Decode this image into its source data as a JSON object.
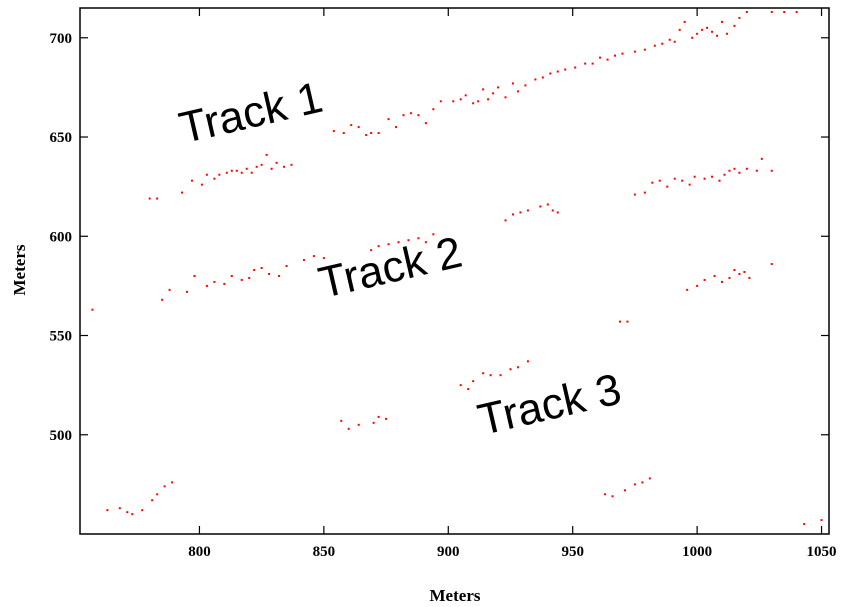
{
  "chart_data": {
    "type": "scatter",
    "title": "",
    "xlabel": "Meters",
    "ylabel": "Meters",
    "xlim": [
      752,
      1053
    ],
    "ylim": [
      450,
      715
    ],
    "x_ticks": [
      800,
      850,
      900,
      950,
      1000,
      1050
    ],
    "y_ticks": [
      500,
      550,
      600,
      650,
      700
    ],
    "grid": false,
    "point_color": "#ff0000",
    "annotations": [
      {
        "text": "Track 1",
        "x": 822,
        "y": 655,
        "rotation": -13
      },
      {
        "text": "Track 2",
        "x": 878,
        "y": 577,
        "rotation": -13
      },
      {
        "text": "Track 3",
        "x": 942,
        "y": 508,
        "rotation": -13
      }
    ],
    "series": [
      {
        "points": [
          [
            780,
            619
          ],
          [
            783,
            619
          ],
          [
            793,
            622
          ],
          [
            797,
            628
          ],
          [
            801,
            626
          ],
          [
            803,
            631
          ],
          [
            806,
            629
          ],
          [
            808,
            631
          ],
          [
            811,
            632
          ],
          [
            813,
            633
          ],
          [
            815,
            633
          ],
          [
            817,
            632
          ],
          [
            819,
            634
          ],
          [
            821,
            632
          ],
          [
            823,
            635
          ],
          [
            825,
            636
          ],
          [
            827,
            641
          ],
          [
            829,
            634
          ],
          [
            831,
            637
          ],
          [
            834,
            635
          ],
          [
            837,
            636
          ],
          [
            854,
            653
          ],
          [
            858,
            652
          ],
          [
            861,
            656
          ],
          [
            864,
            655
          ],
          [
            867,
            651
          ],
          [
            869,
            652
          ],
          [
            872,
            652
          ],
          [
            876,
            659
          ],
          [
            879,
            655
          ],
          [
            882,
            661
          ],
          [
            885,
            662
          ],
          [
            888,
            661
          ],
          [
            891,
            657
          ],
          [
            894,
            664
          ],
          [
            897,
            668
          ],
          [
            902,
            668
          ],
          [
            905,
            669
          ],
          [
            907,
            671
          ],
          [
            910,
            667
          ],
          [
            912,
            668
          ],
          [
            914,
            674
          ],
          [
            916,
            669
          ],
          [
            918,
            672
          ],
          [
            920,
            675
          ],
          [
            923,
            670
          ],
          [
            926,
            677
          ],
          [
            928,
            673
          ],
          [
            931,
            676
          ],
          [
            935,
            679
          ],
          [
            938,
            680
          ],
          [
            941,
            682
          ],
          [
            944,
            683
          ],
          [
            947,
            684
          ],
          [
            951,
            685
          ],
          [
            955,
            687
          ],
          [
            958,
            687
          ],
          [
            961,
            690
          ],
          [
            964,
            689
          ],
          [
            967,
            691
          ],
          [
            970,
            692
          ],
          [
            975,
            693
          ],
          [
            979,
            694
          ],
          [
            983,
            696
          ],
          [
            986,
            697
          ],
          [
            989,
            699
          ],
          [
            991,
            698
          ],
          [
            993,
            704
          ],
          [
            995,
            708
          ],
          [
            998,
            700
          ],
          [
            1000,
            702
          ],
          [
            1002,
            704
          ],
          [
            1004,
            705
          ],
          [
            1006,
            703
          ],
          [
            1008,
            701
          ],
          [
            1010,
            708
          ],
          [
            1012,
            702
          ],
          [
            1015,
            706
          ],
          [
            1017,
            710
          ],
          [
            1020,
            713
          ],
          [
            1030,
            713
          ],
          [
            1035,
            713
          ],
          [
            1040,
            713
          ],
          [
            757,
            563
          ],
          [
            785,
            568
          ],
          [
            788,
            573
          ],
          [
            795,
            572
          ],
          [
            798,
            580
          ],
          [
            803,
            575
          ],
          [
            806,
            577
          ],
          [
            810,
            576
          ],
          [
            813,
            580
          ],
          [
            817,
            578
          ],
          [
            820,
            579
          ],
          [
            822,
            583
          ],
          [
            825,
            584
          ],
          [
            828,
            581
          ],
          [
            832,
            580
          ],
          [
            835,
            585
          ],
          [
            842,
            588
          ],
          [
            846,
            590
          ],
          [
            850,
            589
          ],
          [
            869,
            593
          ],
          [
            872,
            595
          ],
          [
            876,
            596
          ],
          [
            880,
            597
          ],
          [
            884,
            598
          ],
          [
            888,
            599
          ],
          [
            891,
            597
          ],
          [
            894,
            601
          ],
          [
            923,
            608
          ],
          [
            926,
            611
          ],
          [
            929,
            612
          ],
          [
            932,
            613
          ],
          [
            937,
            615
          ],
          [
            940,
            616
          ],
          [
            942,
            613
          ],
          [
            944,
            612
          ],
          [
            975,
            621
          ],
          [
            979,
            622
          ],
          [
            982,
            627
          ],
          [
            985,
            628
          ],
          [
            988,
            625
          ],
          [
            991,
            629
          ],
          [
            994,
            628
          ],
          [
            997,
            626
          ],
          [
            999,
            630
          ],
          [
            1003,
            629
          ],
          [
            1006,
            630
          ],
          [
            1009,
            628
          ],
          [
            1011,
            631
          ],
          [
            1013,
            633
          ],
          [
            1015,
            634
          ],
          [
            1017,
            632
          ],
          [
            1020,
            634
          ],
          [
            1024,
            633
          ],
          [
            1026,
            639
          ],
          [
            1030,
            633
          ],
          [
            996,
            573
          ],
          [
            1000,
            575
          ],
          [
            1003,
            578
          ],
          [
            1007,
            580
          ],
          [
            1010,
            577
          ],
          [
            1013,
            579
          ],
          [
            1015,
            583
          ],
          [
            1017,
            581
          ],
          [
            1019,
            582
          ],
          [
            1021,
            579
          ],
          [
            1030,
            586
          ],
          [
            857,
            507
          ],
          [
            860,
            503
          ],
          [
            864,
            505
          ],
          [
            870,
            506
          ],
          [
            872,
            509
          ],
          [
            875,
            508
          ],
          [
            905,
            525
          ],
          [
            908,
            523
          ],
          [
            910,
            527
          ],
          [
            914,
            531
          ],
          [
            917,
            530
          ],
          [
            921,
            530
          ],
          [
            925,
            533
          ],
          [
            928,
            534
          ],
          [
            932,
            537
          ],
          [
            969,
            557
          ],
          [
            972,
            557
          ],
          [
            763,
            462
          ],
          [
            768,
            463
          ],
          [
            771,
            461
          ],
          [
            773,
            460
          ],
          [
            777,
            462
          ],
          [
            781,
            467
          ],
          [
            783,
            470
          ],
          [
            786,
            474
          ],
          [
            789,
            476
          ],
          [
            963,
            470
          ],
          [
            966,
            469
          ],
          [
            971,
            472
          ],
          [
            975,
            475
          ],
          [
            978,
            476
          ],
          [
            981,
            478
          ],
          [
            1043,
            455
          ],
          [
            1050,
            457
          ]
        ]
      }
    ]
  }
}
